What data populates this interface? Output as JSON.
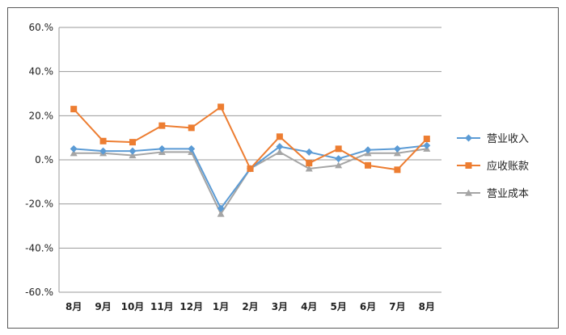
{
  "chart_data": {
    "type": "line",
    "categories": [
      "8月",
      "9月",
      "10月",
      "11月",
      "12月",
      "1月",
      "2月",
      "3月",
      "4月",
      "5月",
      "6月",
      "7月",
      "8月"
    ],
    "series": [
      {
        "name": "营业收入",
        "color": "#5b9bd5",
        "marker": "diamond",
        "values": [
          5.0,
          4.0,
          4.0,
          5.0,
          5.0,
          -22.0,
          -4.0,
          6.0,
          3.5,
          0.5,
          4.5,
          5.0,
          6.5
        ]
      },
      {
        "name": "应收账款",
        "color": "#ed7d31",
        "marker": "square",
        "values": [
          23.0,
          8.5,
          8.0,
          15.5,
          14.5,
          24.0,
          -4.0,
          10.5,
          -1.5,
          5.0,
          -2.5,
          -4.5,
          9.5
        ]
      },
      {
        "name": "营业成本",
        "color": "#a5a5a5",
        "marker": "triangle",
        "values": [
          3.0,
          3.0,
          2.0,
          3.5,
          3.5,
          -24.5,
          -4.0,
          3.5,
          -4.0,
          -2.5,
          3.0,
          3.0,
          5.0
        ]
      }
    ],
    "yticks": [
      "60.%",
      "40.%",
      "20.%",
      "0.%",
      "-20.%",
      "-40.%",
      "-60.%"
    ],
    "ylim": [
      -60,
      60
    ],
    "ystep": 20,
    "grid": true,
    "legend": "right"
  }
}
